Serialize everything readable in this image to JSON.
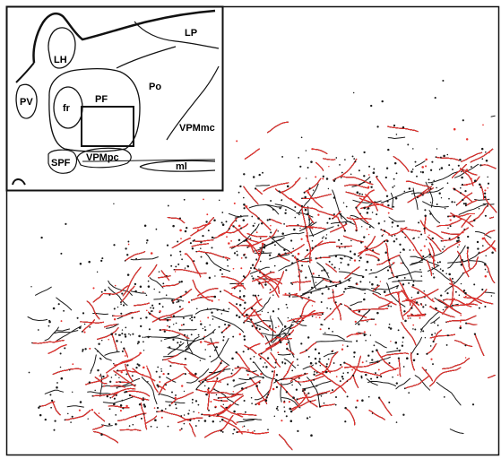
{
  "figure": {
    "colors": {
      "background": "#ffffff",
      "line": "#111111",
      "fiber_black": "#1a1a1a",
      "fiber_red": "#e8322e"
    },
    "inset": {
      "regions": {
        "lp": "LP",
        "lh": "LH",
        "pv": "PV",
        "fr": "fr",
        "pf": "PF",
        "po": "Po",
        "vpmmc": "VPMmc",
        "spf": "SPF",
        "vpmpc": "VPMpc",
        "ml": "ml"
      }
    }
  }
}
